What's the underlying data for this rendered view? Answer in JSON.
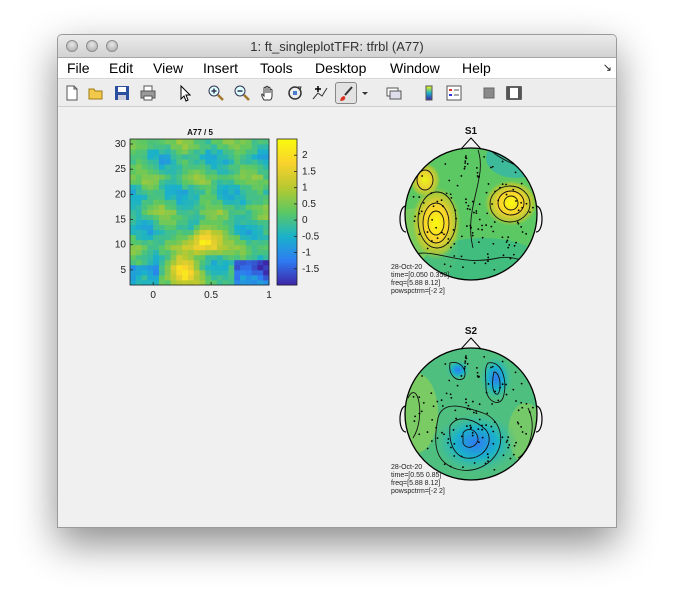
{
  "window": {
    "title": "1: ft_singleplotTFR: tfrbl (A77)"
  },
  "menu": [
    "File",
    "Edit",
    "View",
    "Insert",
    "Tools",
    "Desktop",
    "Window",
    "Help"
  ],
  "toolbar_icons": [
    "new-figure-icon",
    "open-file-icon",
    "save-icon",
    "print-icon",
    "pointer-icon",
    "zoom-in-icon",
    "zoom-out-icon",
    "pan-hand-icon",
    "rotate-3d-icon",
    "data-cursor-icon",
    "brush-icon",
    "dropdown-arrow-icon",
    "link-plot-icon",
    "insert-colorbar-icon",
    "insert-legend-icon",
    "hide-plot-tools-icon",
    "show-plot-tools-icon"
  ],
  "chart_data": [
    {
      "type": "heatmap",
      "title": "A77 / 5",
      "xlim": [
        -0.2,
        1
      ],
      "ylim": [
        2,
        31
      ],
      "x_ticks": [
        "0",
        "0.5",
        "1"
      ],
      "y_ticks": [
        "5",
        "10",
        "15",
        "20",
        "25",
        "30"
      ],
      "colorbar": {
        "range": [
          -2,
          2.5
        ],
        "ticks": [
          "2",
          "1.5",
          "1",
          "0.5",
          "0",
          "-0.5",
          "-1",
          "-1.5"
        ]
      },
      "colormap": [
        "#3e26a8",
        "#2e7cf2",
        "#1ab2ca",
        "#5cc863",
        "#b8c930",
        "#f9d22e",
        "#f9fb0e"
      ],
      "hotspots": [
        {
          "x": 0.24,
          "y": 5,
          "strength": 2.3
        },
        {
          "x": 0.45,
          "y": 11,
          "strength": 2.4
        }
      ]
    },
    {
      "type": "topoplot",
      "title": "S1",
      "annotation": [
        "28-Oct-20",
        "time=[0.050 0.350]",
        "freq=[5.88 8.12]",
        "powspctrm=[-2 2]"
      ]
    },
    {
      "type": "topoplot",
      "title": "S2",
      "annotation": [
        "28-Oct-20",
        "time=[0.55 0.85]",
        "freq=[5.88 8.12]",
        "powspctrm=[-2 2]"
      ]
    }
  ]
}
